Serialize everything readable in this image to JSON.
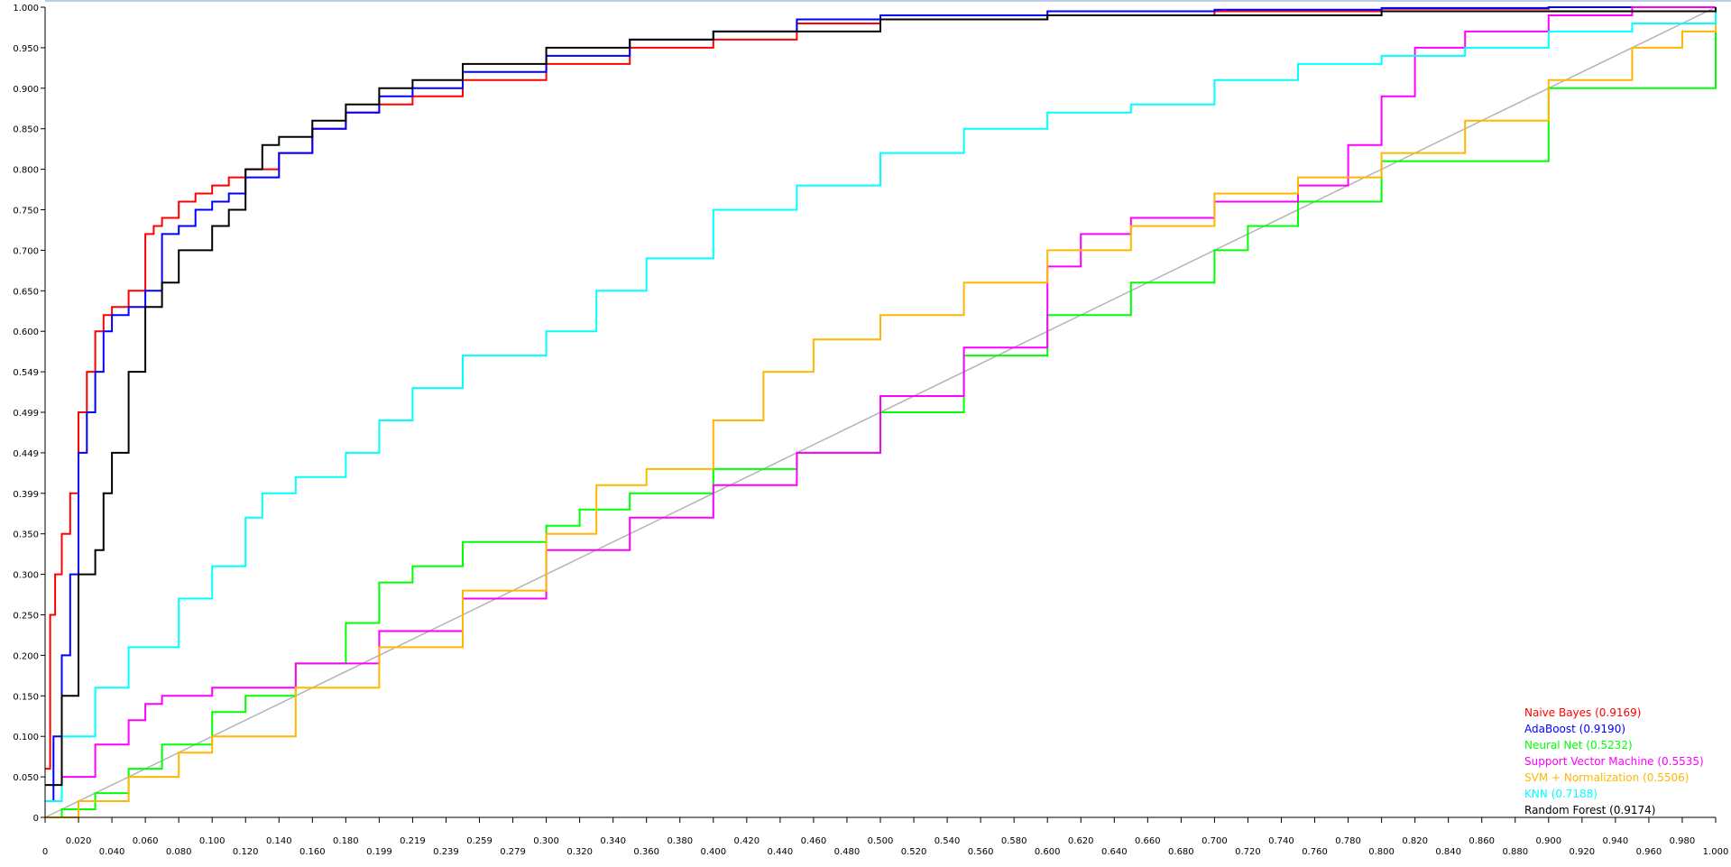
{
  "chart_data": {
    "type": "line",
    "title": "",
    "xlabel": "",
    "ylabel": "",
    "xlim": [
      0,
      1
    ],
    "ylim": [
      0,
      1
    ],
    "grid": false,
    "legend_position": "bottom-right",
    "x_tick_labels": [
      "0",
      "0.020",
      "0.040",
      "0.060",
      "0.080",
      "0.100",
      "0.120",
      "0.140",
      "0.160",
      "0.180",
      "0.199",
      "0.219",
      "0.239",
      "0.259",
      "0.279",
      "0.300",
      "0.320",
      "0.340",
      "0.360",
      "0.380",
      "0.400",
      "0.420",
      "0.440",
      "0.460",
      "0.480",
      "0.500",
      "0.520",
      "0.540",
      "0.560",
      "0.580",
      "0.600",
      "0.620",
      "0.640",
      "0.660",
      "0.680",
      "0.700",
      "0.720",
      "0.740",
      "0.760",
      "0.780",
      "0.800",
      "0.820",
      "0.840",
      "0.860",
      "0.880",
      "0.900",
      "0.920",
      "0.940",
      "0.960",
      "0.980",
      "1.000"
    ],
    "y_tick_labels": [
      "0",
      "0.050",
      "0.100",
      "0.150",
      "0.200",
      "0.250",
      "0.300",
      "0.350",
      "0.399",
      "0.449",
      "0.499",
      "0.549",
      "0.600",
      "0.650",
      "0.700",
      "0.750",
      "0.800",
      "0.850",
      "0.900",
      "0.950",
      "1.000"
    ],
    "diagonal": {
      "x": [
        0,
        1
      ],
      "y": [
        0,
        1
      ],
      "color": "#b4b4b4"
    },
    "series": [
      {
        "name": "Naive Bayes (0.9169)",
        "color": "#ff0000",
        "x": [
          0,
          0.003,
          0.006,
          0.01,
          0.015,
          0.02,
          0.025,
          0.03,
          0.035,
          0.04,
          0.05,
          0.06,
          0.065,
          0.07,
          0.08,
          0.09,
          0.1,
          0.11,
          0.12,
          0.14,
          0.16,
          0.18,
          0.2,
          0.22,
          0.25,
          0.3,
          0.35,
          0.4,
          0.45,
          0.5,
          0.6,
          0.7,
          0.8,
          0.9,
          1.0
        ],
        "y": [
          0.06,
          0.25,
          0.3,
          0.35,
          0.4,
          0.5,
          0.55,
          0.6,
          0.62,
          0.63,
          0.65,
          0.72,
          0.73,
          0.74,
          0.76,
          0.77,
          0.78,
          0.79,
          0.8,
          0.82,
          0.85,
          0.87,
          0.88,
          0.89,
          0.91,
          0.93,
          0.95,
          0.96,
          0.98,
          0.985,
          0.99,
          0.995,
          0.998,
          1.0,
          1.0
        ]
      },
      {
        "name": "AdaBoost (0.9190)",
        "color": "#0000ff",
        "x": [
          0,
          0.005,
          0.01,
          0.015,
          0.02,
          0.025,
          0.03,
          0.035,
          0.04,
          0.05,
          0.06,
          0.07,
          0.08,
          0.09,
          0.1,
          0.11,
          0.12,
          0.14,
          0.16,
          0.18,
          0.2,
          0.22,
          0.25,
          0.3,
          0.35,
          0.4,
          0.45,
          0.5,
          0.6,
          0.7,
          0.8,
          0.9,
          1.0
        ],
        "y": [
          0.02,
          0.1,
          0.2,
          0.3,
          0.45,
          0.5,
          0.55,
          0.6,
          0.62,
          0.63,
          0.65,
          0.72,
          0.73,
          0.75,
          0.76,
          0.77,
          0.79,
          0.82,
          0.85,
          0.87,
          0.89,
          0.9,
          0.92,
          0.94,
          0.96,
          0.97,
          0.985,
          0.99,
          0.995,
          0.997,
          0.999,
          1.0,
          1.0
        ]
      },
      {
        "name": "Neural Net (0.5232)",
        "color": "#00ff00",
        "x": [
          0,
          0.01,
          0.03,
          0.05,
          0.07,
          0.1,
          0.12,
          0.15,
          0.18,
          0.2,
          0.22,
          0.25,
          0.3,
          0.32,
          0.35,
          0.4,
          0.45,
          0.5,
          0.55,
          0.6,
          0.65,
          0.7,
          0.72,
          0.75,
          0.8,
          0.9,
          1.0
        ],
        "y": [
          0,
          0.01,
          0.03,
          0.06,
          0.09,
          0.13,
          0.15,
          0.19,
          0.24,
          0.29,
          0.31,
          0.34,
          0.36,
          0.38,
          0.4,
          0.43,
          0.45,
          0.5,
          0.57,
          0.62,
          0.66,
          0.7,
          0.73,
          0.76,
          0.81,
          0.9,
          1.0
        ]
      },
      {
        "name": "Support Vector Machine (0.5535)",
        "color": "#ff00ff",
        "x": [
          0,
          0.01,
          0.03,
          0.05,
          0.06,
          0.07,
          0.1,
          0.15,
          0.2,
          0.25,
          0.3,
          0.35,
          0.4,
          0.45,
          0.5,
          0.55,
          0.6,
          0.62,
          0.65,
          0.7,
          0.75,
          0.78,
          0.8,
          0.82,
          0.85,
          0.9,
          0.95,
          1.0
        ],
        "y": [
          0.02,
          0.05,
          0.09,
          0.12,
          0.14,
          0.15,
          0.16,
          0.19,
          0.23,
          0.27,
          0.33,
          0.37,
          0.41,
          0.45,
          0.52,
          0.58,
          0.68,
          0.72,
          0.74,
          0.76,
          0.78,
          0.83,
          0.89,
          0.95,
          0.97,
          0.99,
          1.0,
          1.0
        ]
      },
      {
        "name": "SVM + Normalization (0.5506)",
        "color": "#ffb800",
        "x": [
          0,
          0.02,
          0.05,
          0.08,
          0.1,
          0.15,
          0.2,
          0.25,
          0.3,
          0.33,
          0.36,
          0.4,
          0.43,
          0.46,
          0.5,
          0.55,
          0.6,
          0.65,
          0.7,
          0.75,
          0.8,
          0.85,
          0.9,
          0.95,
          0.98,
          1.0
        ],
        "y": [
          0,
          0.02,
          0.05,
          0.08,
          0.1,
          0.16,
          0.21,
          0.28,
          0.35,
          0.41,
          0.43,
          0.49,
          0.55,
          0.59,
          0.62,
          0.66,
          0.7,
          0.73,
          0.77,
          0.79,
          0.82,
          0.86,
          0.91,
          0.95,
          0.97,
          1.0
        ]
      },
      {
        "name": "KNN (0.7188)",
        "color": "#00ffff",
        "x": [
          0,
          0.01,
          0.03,
          0.05,
          0.08,
          0.1,
          0.12,
          0.13,
          0.15,
          0.18,
          0.2,
          0.22,
          0.25,
          0.3,
          0.33,
          0.36,
          0.4,
          0.45,
          0.5,
          0.55,
          0.6,
          0.65,
          0.7,
          0.75,
          0.8,
          0.85,
          0.9,
          0.95,
          1.0
        ],
        "y": [
          0.02,
          0.1,
          0.16,
          0.21,
          0.27,
          0.31,
          0.37,
          0.4,
          0.42,
          0.45,
          0.49,
          0.53,
          0.57,
          0.6,
          0.65,
          0.69,
          0.75,
          0.78,
          0.82,
          0.85,
          0.87,
          0.88,
          0.91,
          0.93,
          0.94,
          0.95,
          0.97,
          0.98,
          1.0
        ]
      },
      {
        "name": "Random Forest (0.9174)",
        "color": "#000000",
        "x": [
          0,
          0.01,
          0.02,
          0.03,
          0.035,
          0.04,
          0.05,
          0.06,
          0.07,
          0.08,
          0.1,
          0.11,
          0.12,
          0.13,
          0.14,
          0.16,
          0.18,
          0.2,
          0.22,
          0.25,
          0.3,
          0.35,
          0.4,
          0.5,
          0.6,
          0.8,
          1.0
        ],
        "y": [
          0.04,
          0.15,
          0.3,
          0.33,
          0.4,
          0.45,
          0.55,
          0.63,
          0.66,
          0.7,
          0.73,
          0.75,
          0.8,
          0.83,
          0.84,
          0.86,
          0.88,
          0.9,
          0.91,
          0.93,
          0.95,
          0.96,
          0.97,
          0.985,
          0.99,
          0.995,
          1.0
        ]
      }
    ]
  }
}
